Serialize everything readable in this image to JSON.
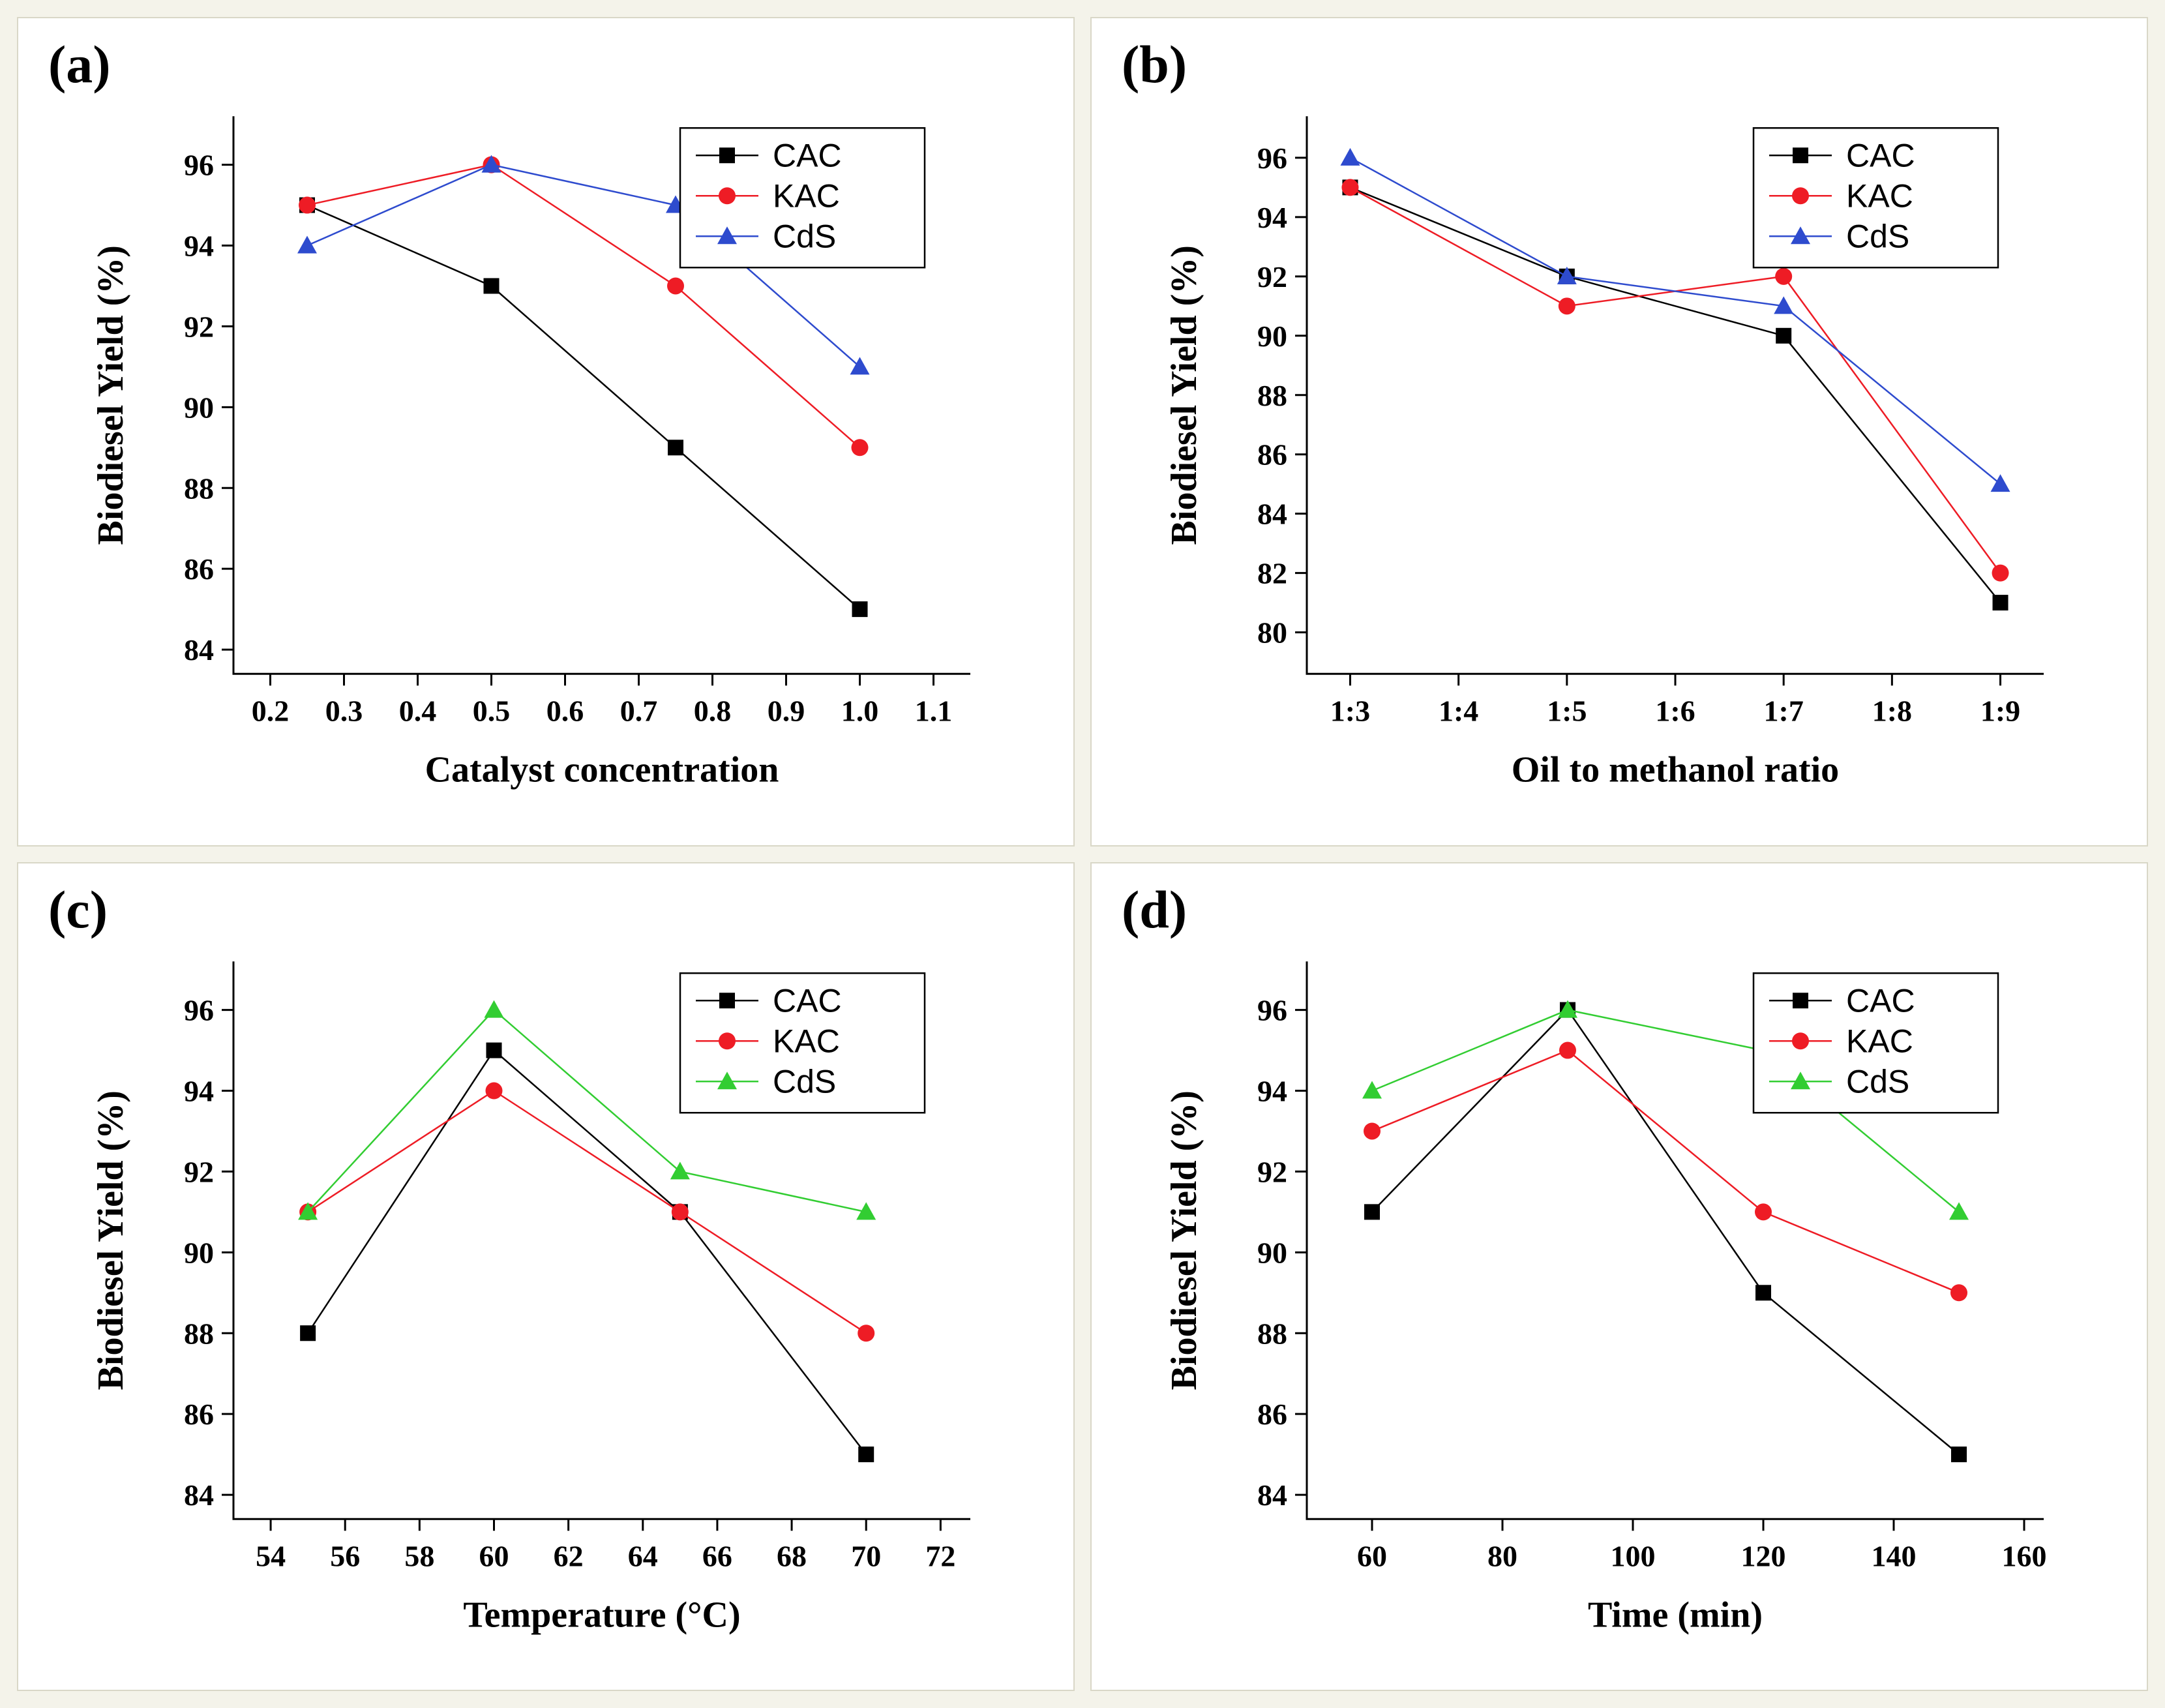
{
  "figure": {
    "background": "#f4f3ea",
    "panel_background": "#ffffff",
    "panel_border": "#d9d7c7",
    "axis_color": "#000000"
  },
  "chart_data": [
    {
      "id": "a",
      "panel_label": "(a)",
      "type": "line",
      "title": "",
      "xlabel": "Catalyst concentration",
      "ylabel": "Biodiesel Yield (%)",
      "x": [
        0.25,
        0.5,
        0.75,
        1.0
      ],
      "xlim": [
        0.15,
        1.15
      ],
      "xticks": [
        0.2,
        0.3,
        0.4,
        0.5,
        0.6,
        0.7,
        0.8,
        0.9,
        1.0,
        1.1
      ],
      "xtick_labels": [
        "0.2",
        "0.3",
        "0.4",
        "0.5",
        "0.6",
        "0.7",
        "0.8",
        "0.9",
        "1.0",
        "1.1"
      ],
      "ylim": [
        83.4,
        97.2
      ],
      "yticks": [
        84,
        86,
        88,
        90,
        92,
        94,
        96
      ],
      "ytick_labels": [
        "84",
        "86",
        "88",
        "90",
        "92",
        "94",
        "96"
      ],
      "grid": false,
      "legend_position": "top-right",
      "series": [
        {
          "name": "CAC",
          "color": "#000000",
          "marker": "square",
          "values": [
            95,
            93,
            89,
            85
          ]
        },
        {
          "name": "KAC",
          "color": "#ee1c25",
          "marker": "circle",
          "values": [
            95,
            96,
            93,
            89
          ]
        },
        {
          "name": "CdS",
          "color": "#2e4bce",
          "marker": "triangle",
          "values": [
            94,
            96,
            95,
            91
          ]
        }
      ]
    },
    {
      "id": "b",
      "panel_label": "(b)",
      "type": "line",
      "title": "",
      "xlabel": "Oil to methanol ratio",
      "ylabel": "Biodiesel Yield (%)",
      "x": [
        3,
        5,
        7,
        9
      ],
      "xlim": [
        2.6,
        9.4
      ],
      "xticks": [
        3,
        4,
        5,
        6,
        7,
        8,
        9
      ],
      "xtick_labels": [
        "1:3",
        "1:4",
        "1:5",
        "1:6",
        "1:7",
        "1:8",
        "1:9"
      ],
      "ylim": [
        78.6,
        97.4
      ],
      "yticks": [
        80,
        82,
        84,
        86,
        88,
        90,
        92,
        94,
        96
      ],
      "ytick_labels": [
        "80",
        "82",
        "84",
        "86",
        "88",
        "90",
        "92",
        "94",
        "96"
      ],
      "grid": false,
      "legend_position": "top-right",
      "series": [
        {
          "name": "CAC",
          "color": "#000000",
          "marker": "square",
          "values": [
            95,
            92,
            90,
            81
          ]
        },
        {
          "name": "KAC",
          "color": "#ee1c25",
          "marker": "circle",
          "values": [
            95,
            91,
            92,
            82
          ]
        },
        {
          "name": "CdS",
          "color": "#2e4bce",
          "marker": "triangle",
          "values": [
            96,
            92,
            91,
            85
          ]
        }
      ]
    },
    {
      "id": "c",
      "panel_label": "(c)",
      "type": "line",
      "title": "",
      "xlabel": "Temperature (°C)",
      "ylabel": "Biodiesel Yield (%)",
      "x": [
        55,
        60,
        65,
        70
      ],
      "xlim": [
        53,
        72.8
      ],
      "xticks": [
        54,
        56,
        58,
        60,
        62,
        64,
        66,
        68,
        70,
        72
      ],
      "xtick_labels": [
        "54",
        "56",
        "58",
        "60",
        "62",
        "64",
        "66",
        "68",
        "70",
        "72"
      ],
      "ylim": [
        83.4,
        97.2
      ],
      "yticks": [
        84,
        86,
        88,
        90,
        92,
        94,
        96
      ],
      "ytick_labels": [
        "84",
        "86",
        "88",
        "90",
        "92",
        "94",
        "96"
      ],
      "grid": false,
      "legend_position": "top-right",
      "series": [
        {
          "name": "CAC",
          "color": "#000000",
          "marker": "square",
          "values": [
            88,
            95,
            91,
            85
          ]
        },
        {
          "name": "KAC",
          "color": "#ee1c25",
          "marker": "circle",
          "values": [
            91,
            94,
            91,
            88
          ]
        },
        {
          "name": "CdS",
          "color": "#32cd32",
          "marker": "triangle",
          "values": [
            91,
            96,
            92,
            91
          ]
        }
      ]
    },
    {
      "id": "d",
      "panel_label": "(d)",
      "type": "line",
      "title": "",
      "xlabel": "Time (min)",
      "ylabel": "Biodiesel Yield (%)",
      "x": [
        60,
        90,
        120,
        150
      ],
      "xlim": [
        50,
        163
      ],
      "xticks": [
        60,
        80,
        100,
        120,
        140,
        160
      ],
      "xtick_labels": [
        "60",
        "80",
        "100",
        "120",
        "140",
        "160"
      ],
      "ylim": [
        83.4,
        97.2
      ],
      "yticks": [
        84,
        86,
        88,
        90,
        92,
        94,
        96
      ],
      "ytick_labels": [
        "84",
        "86",
        "88",
        "90",
        "92",
        "94",
        "96"
      ],
      "grid": false,
      "legend_position": "top-right",
      "series": [
        {
          "name": "CAC",
          "color": "#000000",
          "marker": "square",
          "values": [
            91,
            96,
            89,
            85
          ]
        },
        {
          "name": "KAC",
          "color": "#ee1c25",
          "marker": "circle",
          "values": [
            93,
            95,
            91,
            89
          ]
        },
        {
          "name": "CdS",
          "color": "#32cd32",
          "marker": "triangle",
          "values": [
            94,
            96,
            95,
            91
          ]
        }
      ]
    }
  ]
}
